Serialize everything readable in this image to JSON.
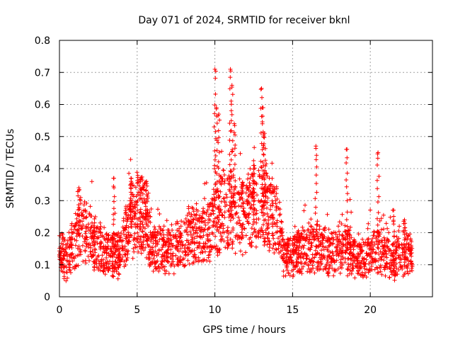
{
  "chart_data": {
    "type": "scatter",
    "title": "Day 071 of 2024, SRMTID for receiver bknl",
    "xlabel": "GPS time / hours",
    "ylabel": "SRMTID / TECUs",
    "xlim": [
      0,
      24
    ],
    "ylim": [
      0,
      0.8
    ],
    "xticks": [
      0,
      5,
      10,
      15,
      20
    ],
    "xtick_labels": [
      "0",
      "5",
      "10",
      "15",
      "20"
    ],
    "yticks": [
      0,
      0.1,
      0.2,
      0.3,
      0.4,
      0.5,
      0.6,
      0.7,
      0.8
    ],
    "ytick_labels": [
      "0",
      "0.1",
      "0.2",
      "0.3",
      "0.4",
      "0.5",
      "0.6",
      "0.7",
      "0.8"
    ],
    "grid": true,
    "marker": "plus",
    "color": "#ff0000",
    "x_extent": [
      0,
      22.7
    ],
    "series": [
      {
        "name": "bknl",
        "trend": [
          [
            0.0,
            0.13
          ],
          [
            0.5,
            0.12
          ],
          [
            1.0,
            0.17
          ],
          [
            1.5,
            0.21
          ],
          [
            2.0,
            0.19
          ],
          [
            2.5,
            0.15
          ],
          [
            3.0,
            0.14
          ],
          [
            3.5,
            0.13
          ],
          [
            4.0,
            0.13
          ],
          [
            4.5,
            0.24
          ],
          [
            5.0,
            0.27
          ],
          [
            5.5,
            0.24
          ],
          [
            6.0,
            0.15
          ],
          [
            6.5,
            0.14
          ],
          [
            7.0,
            0.14
          ],
          [
            7.5,
            0.15
          ],
          [
            8.0,
            0.17
          ],
          [
            8.5,
            0.19
          ],
          [
            9.0,
            0.19
          ],
          [
            9.5,
            0.21
          ],
          [
            10.0,
            0.25
          ],
          [
            10.5,
            0.27
          ],
          [
            11.0,
            0.29
          ],
          [
            11.5,
            0.26
          ],
          [
            12.0,
            0.25
          ],
          [
            12.5,
            0.28
          ],
          [
            13.0,
            0.29
          ],
          [
            13.5,
            0.27
          ],
          [
            14.0,
            0.24
          ],
          [
            14.5,
            0.12
          ],
          [
            15.0,
            0.13
          ],
          [
            15.5,
            0.14
          ],
          [
            16.0,
            0.15
          ],
          [
            16.5,
            0.16
          ],
          [
            17.0,
            0.14
          ],
          [
            17.5,
            0.13
          ],
          [
            18.0,
            0.15
          ],
          [
            18.5,
            0.15
          ],
          [
            19.0,
            0.13
          ],
          [
            19.5,
            0.12
          ],
          [
            20.0,
            0.13
          ],
          [
            20.5,
            0.15
          ],
          [
            21.0,
            0.13
          ],
          [
            21.5,
            0.11
          ],
          [
            22.0,
            0.14
          ],
          [
            22.7,
            0.13
          ]
        ],
        "spikes": [
          [
            1.25,
            0.34
          ],
          [
            3.5,
            0.37
          ],
          [
            4.6,
            0.37
          ],
          [
            5.6,
            0.36
          ],
          [
            10.0,
            0.71
          ],
          [
            10.1,
            0.59
          ],
          [
            10.25,
            0.57
          ],
          [
            11.0,
            0.71
          ],
          [
            11.1,
            0.66
          ],
          [
            11.25,
            0.54
          ],
          [
            12.5,
            0.41
          ],
          [
            13.0,
            0.65
          ],
          [
            13.1,
            0.59
          ],
          [
            13.2,
            0.51
          ],
          [
            16.5,
            0.47
          ],
          [
            18.5,
            0.46
          ],
          [
            20.5,
            0.45
          ],
          [
            21.5,
            0.27
          ],
          [
            22.2,
            0.24
          ]
        ]
      }
    ]
  }
}
